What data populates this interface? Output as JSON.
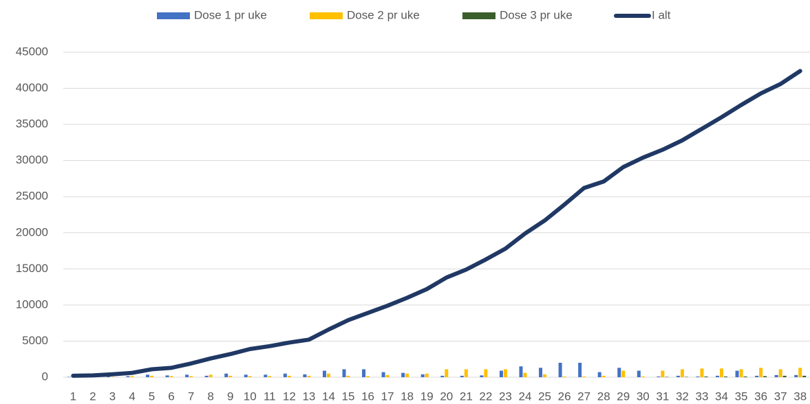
{
  "chart_data": {
    "type": "bar_line",
    "categories": [
      "1",
      "2",
      "3",
      "4",
      "5",
      "6",
      "7",
      "8",
      "9",
      "10",
      "11",
      "12",
      "13",
      "14",
      "15",
      "16",
      "17",
      "18",
      "19",
      "20",
      "21",
      "22",
      "23",
      "24",
      "25",
      "26",
      "27",
      "28",
      "29",
      "30",
      "31",
      "32",
      "33",
      "34",
      "35",
      "36",
      "37",
      "38"
    ],
    "series": [
      {
        "name": "Dose 1 pr uke",
        "type": "bar",
        "color": "#4472c4",
        "values": [
          50,
          50,
          100,
          150,
          350,
          250,
          350,
          200,
          500,
          350,
          350,
          500,
          400,
          900,
          1100,
          1100,
          700,
          600,
          400,
          200,
          200,
          250,
          900,
          1500,
          1300,
          2000,
          2000,
          700,
          1300,
          900,
          100,
          200,
          100,
          200,
          900,
          200,
          300,
          300
        ]
      },
      {
        "name": "Dose 2 pr uke",
        "type": "bar",
        "color": "#ffc000",
        "values": [
          0,
          0,
          50,
          150,
          200,
          150,
          150,
          350,
          200,
          150,
          150,
          200,
          200,
          500,
          200,
          150,
          300,
          500,
          500,
          1100,
          1100,
          1100,
          1100,
          600,
          400,
          100,
          100,
          200,
          900,
          100,
          900,
          1100,
          1200,
          1200,
          1100,
          1300,
          1100,
          1300
        ]
      },
      {
        "name": "Dose 3 pr uke",
        "type": "bar",
        "color": "#3b5e2b",
        "values": [
          0,
          0,
          0,
          0,
          0,
          0,
          0,
          0,
          0,
          0,
          0,
          0,
          0,
          0,
          0,
          0,
          0,
          0,
          0,
          0,
          0,
          0,
          0,
          0,
          0,
          0,
          0,
          0,
          0,
          0,
          50,
          50,
          100,
          100,
          100,
          150,
          200,
          200
        ]
      },
      {
        "name": "I alt",
        "type": "line",
        "color": "#203864",
        "values": [
          200,
          250,
          400,
          600,
          1100,
          1300,
          1900,
          2600,
          3200,
          3900,
          4300,
          4800,
          5200,
          6600,
          7900,
          8900,
          9900,
          11000,
          12200,
          13800,
          14900,
          16300,
          17800,
          19900,
          21700,
          23900,
          26200,
          27100,
          29100,
          30400,
          31500,
          32800,
          34400,
          36000,
          37700,
          39300,
          40600,
          42400
        ]
      }
    ],
    "ylim": [
      0,
      45000
    ],
    "yticks": [
      0,
      5000,
      10000,
      15000,
      20000,
      25000,
      30000,
      35000,
      40000,
      45000
    ],
    "grid": true,
    "legend": "top"
  }
}
